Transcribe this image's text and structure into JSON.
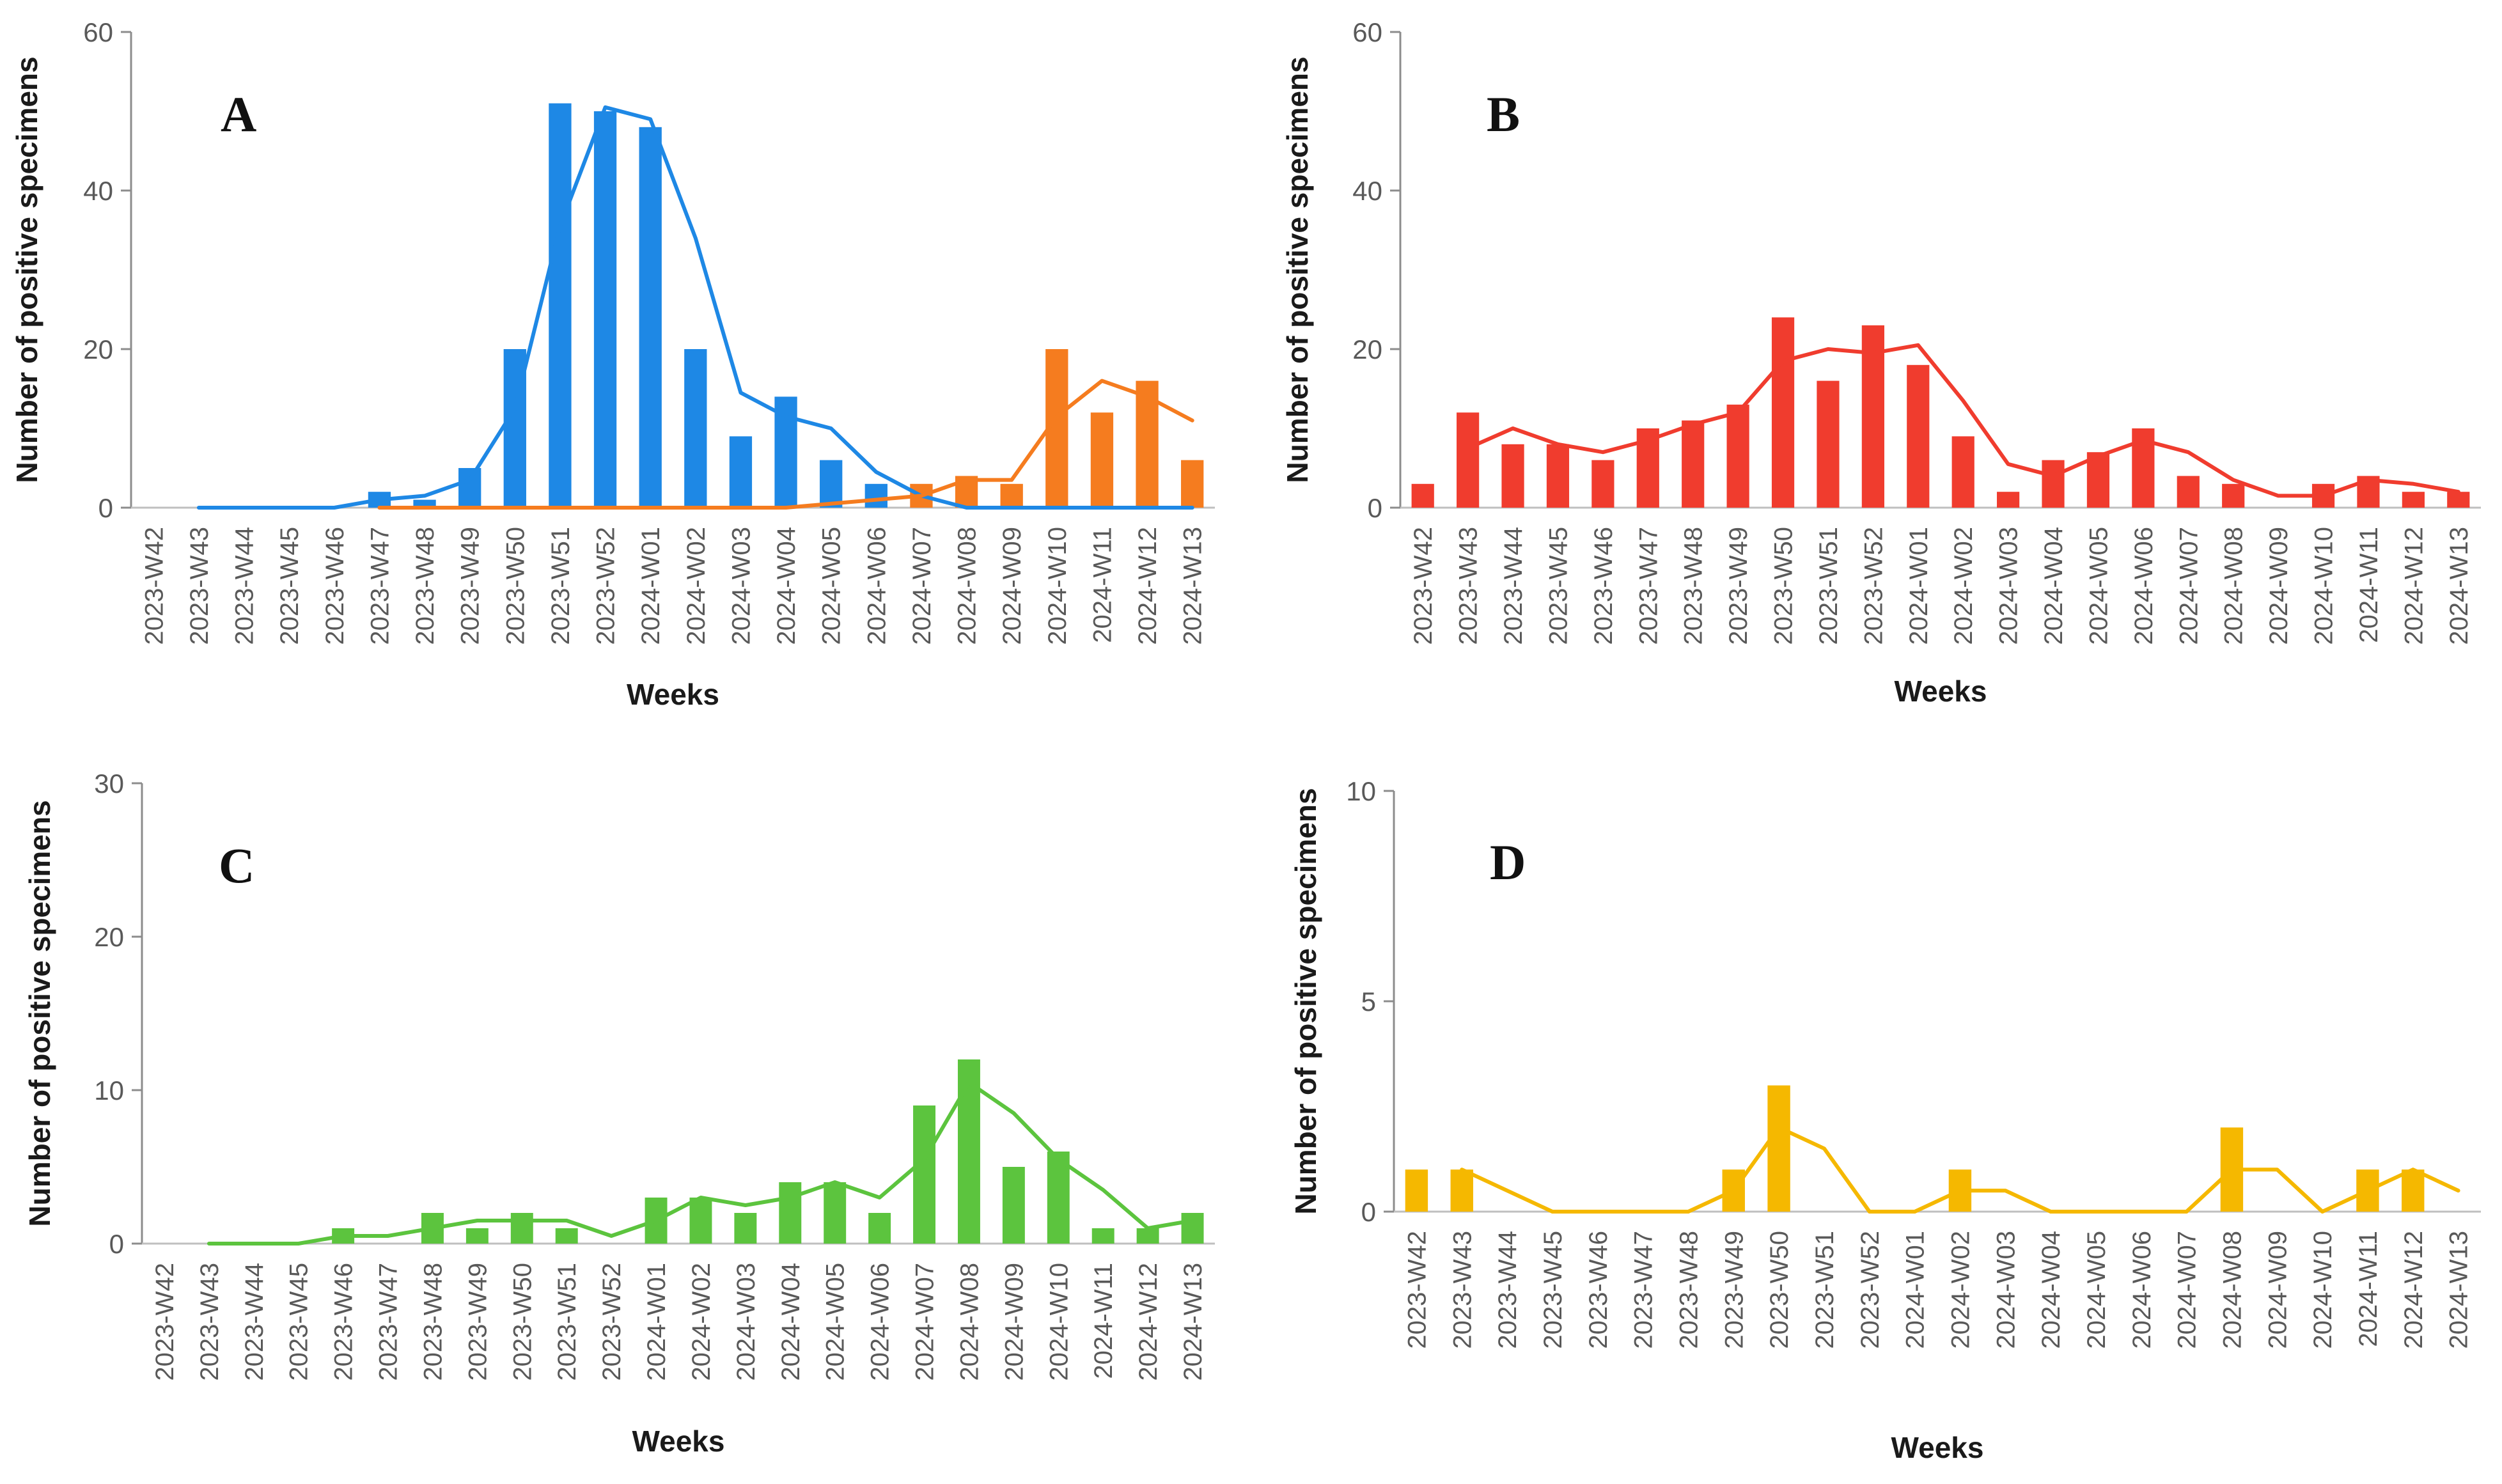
{
  "figure_title": "",
  "chart_data": [
    {
      "panel": "A",
      "type": "bar",
      "title": "",
      "xlabel": "Weeks",
      "ylabel": "Number of positive specimens",
      "ylim": [
        0,
        60
      ],
      "yticks": [
        "0",
        "20",
        "40",
        "60"
      ],
      "categories": [
        "2023-W42",
        "2023-W43",
        "2023-W44",
        "2023-W45",
        "2023-W46",
        "2023-W47",
        "2023-W48",
        "2023-W49",
        "2023-W50",
        "2023-W51",
        "2023-W52",
        "2024-W01",
        "2024-W02",
        "2024-W03",
        "2024-W04",
        "2024-W05",
        "2024-W06",
        "2024-W07",
        "2024-W08",
        "2024-W09",
        "2024-W10",
        "2024-W11",
        "2024-W12",
        "2024-W13"
      ],
      "series": [
        {
          "name": "bars (blue)",
          "kind": "bar",
          "color": "#1E88E5",
          "values": [
            0,
            0,
            0,
            0,
            0,
            2,
            1,
            5,
            20,
            51,
            50,
            48,
            20,
            9,
            14,
            6,
            3,
            null,
            null,
            null,
            null,
            null,
            null,
            null
          ]
        },
        {
          "name": "bars (orange)",
          "kind": "bar",
          "color": "#F57C1F",
          "values": [
            null,
            null,
            null,
            null,
            null,
            null,
            null,
            null,
            null,
            null,
            null,
            null,
            null,
            null,
            null,
            null,
            null,
            3,
            4,
            3,
            20,
            12,
            16,
            6
          ]
        },
        {
          "name": "trend (blue)",
          "kind": "line",
          "color": "#1E88E5",
          "values": [
            null,
            0,
            0,
            0,
            0,
            1,
            1.5,
            3.5,
            12.5,
            35.5,
            50.5,
            49,
            34,
            14.5,
            11.5,
            10,
            4.5,
            1.5,
            0,
            0,
            0,
            0,
            0,
            0
          ]
        },
        {
          "name": "trend (orange)",
          "kind": "line",
          "color": "#F57C1F",
          "values": [
            null,
            null,
            null,
            null,
            null,
            0,
            0,
            0,
            0,
            0,
            0,
            0,
            0,
            0,
            0,
            0.5,
            1,
            1.5,
            3.5,
            3.5,
            11.5,
            16,
            14,
            11
          ]
        }
      ]
    },
    {
      "panel": "B",
      "type": "bar",
      "title": "",
      "xlabel": "Weeks",
      "ylabel": "Number of positive specimens",
      "ylim": [
        0,
        60
      ],
      "yticks": [
        "0",
        "20",
        "40",
        "60"
      ],
      "categories": [
        "2023-W42",
        "2023-W43",
        "2023-W44",
        "2023-W45",
        "2023-W46",
        "2023-W47",
        "2023-W48",
        "2023-W49",
        "2023-W50",
        "2023-W51",
        "2023-W52",
        "2024-W01",
        "2024-W02",
        "2024-W03",
        "2024-W04",
        "2024-W05",
        "2024-W06",
        "2024-W07",
        "2024-W08",
        "2024-W09",
        "2024-W10",
        "2024-W11",
        "2024-W12",
        "2024-W13"
      ],
      "series": [
        {
          "name": "bars (red)",
          "kind": "bar",
          "color": "#F03C2E",
          "values": [
            3,
            12,
            8,
            8,
            6,
            10,
            11,
            13,
            24,
            16,
            23,
            18,
            9,
            2,
            6,
            7,
            10,
            4,
            3,
            0,
            3,
            4,
            2,
            2
          ]
        },
        {
          "name": "trend (red)",
          "kind": "line",
          "color": "#F03C2E",
          "values": [
            null,
            7.5,
            10,
            8,
            7,
            8.5,
            10.5,
            12,
            18.5,
            20,
            19.5,
            20.5,
            13.5,
            5.5,
            4,
            6.5,
            8.5,
            7,
            3.5,
            1.5,
            1.5,
            3.5,
            3,
            2
          ]
        }
      ]
    },
    {
      "panel": "C",
      "type": "bar",
      "title": "",
      "xlabel": "Weeks",
      "ylabel": "Number of positive specimens",
      "ylim": [
        0,
        30
      ],
      "yticks": [
        "0",
        "10",
        "20",
        "30"
      ],
      "categories": [
        "2023-W42",
        "2023-W43",
        "2023-W44",
        "2023-W45",
        "2023-W46",
        "2023-W47",
        "2023-W48",
        "2023-W49",
        "2023-W50",
        "2023-W51",
        "2023-W52",
        "2024-W01",
        "2024-W02",
        "2024-W03",
        "2024-W04",
        "2024-W05",
        "2024-W06",
        "2024-W07",
        "2024-W08",
        "2024-W09",
        "2024-W10",
        "2024-W11",
        "2024-W12",
        "2024-W13"
      ],
      "series": [
        {
          "name": "bars (green)",
          "kind": "bar",
          "color": "#5CC43E",
          "values": [
            0,
            0,
            0,
            0,
            1,
            0,
            2,
            1,
            2,
            1,
            0,
            3,
            3,
            2,
            4,
            4,
            2,
            9,
            12,
            5,
            6,
            1,
            1,
            2
          ]
        },
        {
          "name": "trend (green)",
          "kind": "line",
          "color": "#5CC43E",
          "values": [
            null,
            0,
            0,
            0,
            0.5,
            0.5,
            1,
            1.5,
            1.5,
            1.5,
            0.5,
            1.5,
            3,
            2.5,
            3,
            4,
            3,
            5.5,
            10.5,
            8.5,
            5.5,
            3.5,
            1,
            1.5
          ]
        }
      ]
    },
    {
      "panel": "D",
      "type": "bar",
      "title": "",
      "xlabel": "Weeks",
      "ylabel": "Number of positive specimens",
      "ylim": [
        0,
        10
      ],
      "yticks": [
        "0",
        "5",
        "10"
      ],
      "categories": [
        "2023-W42",
        "2023-W43",
        "2023-W44",
        "2023-W45",
        "2023-W46",
        "2023-W47",
        "2023-W48",
        "2023-W49",
        "2023-W50",
        "2023-W51",
        "2023-W52",
        "2024-W01",
        "2024-W02",
        "2024-W03",
        "2024-W04",
        "2024-W05",
        "2024-W06",
        "2024-W07",
        "2024-W08",
        "2024-W09",
        "2024-W10",
        "2024-W11",
        "2024-W12",
        "2024-W13"
      ],
      "series": [
        {
          "name": "bars (yellow)",
          "kind": "bar",
          "color": "#F5B800",
          "values": [
            1,
            1,
            0,
            0,
            0,
            0,
            0,
            1,
            3,
            0,
            0,
            0,
            1,
            0,
            0,
            0,
            0,
            0,
            2,
            0,
            0,
            1,
            1,
            0
          ]
        },
        {
          "name": "trend (yellow)",
          "kind": "line",
          "color": "#F5B800",
          "values": [
            null,
            1,
            0.5,
            0,
            0,
            0,
            0,
            0.5,
            2,
            1.5,
            0,
            0,
            0.5,
            0.5,
            0,
            0,
            0,
            0,
            1,
            1,
            0,
            0.5,
            1,
            0.5
          ]
        }
      ]
    }
  ]
}
